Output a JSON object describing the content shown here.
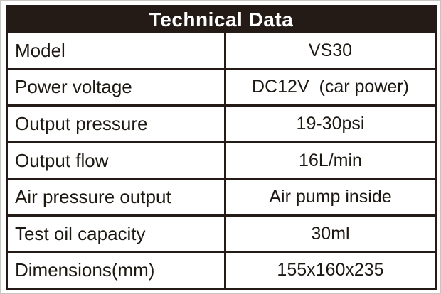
{
  "table": {
    "title": "Technical Data",
    "rows": [
      {
        "label": "Model",
        "value": "VS30"
      },
      {
        "label": "Power voltage",
        "value": "DC12V  (car power)"
      },
      {
        "label": "Output pressure",
        "value": "19-30psi"
      },
      {
        "label": "Output flow",
        "value": "16L/min"
      },
      {
        "label": "Air pressure output",
        "value": "Air pump inside"
      },
      {
        "label": "Test oil capacity",
        "value": "30ml"
      },
      {
        "label": "Dimensions(mm)",
        "value": "155x160x235"
      }
    ]
  },
  "colors": {
    "header_bg": "#241b16",
    "border": "#241b16",
    "text": "#1d1812",
    "header_text": "#ffffff",
    "page_bg": "#ffffff",
    "page_edge": "#c9c5c1"
  }
}
